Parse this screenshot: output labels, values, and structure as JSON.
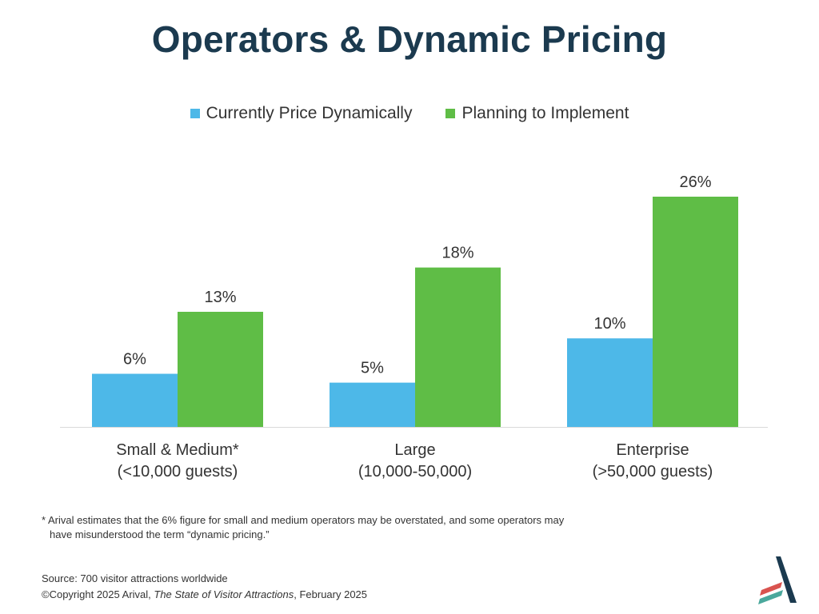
{
  "title": "Operators & Dynamic Pricing",
  "chart_data": {
    "type": "bar",
    "title": "Operators & Dynamic Pricing",
    "categories": [
      {
        "line1": "Small & Medium*",
        "line2": "(<10,000 guests)"
      },
      {
        "line1": "Large",
        "line2": "(10,000-50,000)"
      },
      {
        "line1": "Enterprise",
        "line2": "(>50,000 guests)"
      }
    ],
    "series": [
      {
        "name": "Currently Price Dynamically",
        "color": "#4db8e8",
        "values": [
          6,
          5,
          10
        ],
        "labels": [
          "6%",
          "5%",
          "10%"
        ]
      },
      {
        "name": "Planning to Implement",
        "color": "#5fbd46",
        "values": [
          13,
          18,
          26
        ],
        "labels": [
          "13%",
          "18%",
          "26%"
        ]
      }
    ],
    "ylim": [
      0,
      26
    ],
    "xlabel": "",
    "ylabel": "",
    "grid": false,
    "legend": "top-center"
  },
  "footnote": {
    "line1": "* Arival estimates that the 6% figure for small and medium operators may be overstated, and some operators may",
    "line2": "have misunderstood the term “dynamic pricing.”"
  },
  "source": {
    "line1": "Source: 700 visitor attractions worldwide",
    "copyright_prefix": "©Copyright 2025 Arival, ",
    "publication": "The State of Visitor Attractions",
    "date_suffix": ", February 2025"
  },
  "logo": {
    "icon": "arival-logo-icon",
    "colors": [
      "#1b3a4f",
      "#d9534f",
      "#4aa89c"
    ]
  }
}
